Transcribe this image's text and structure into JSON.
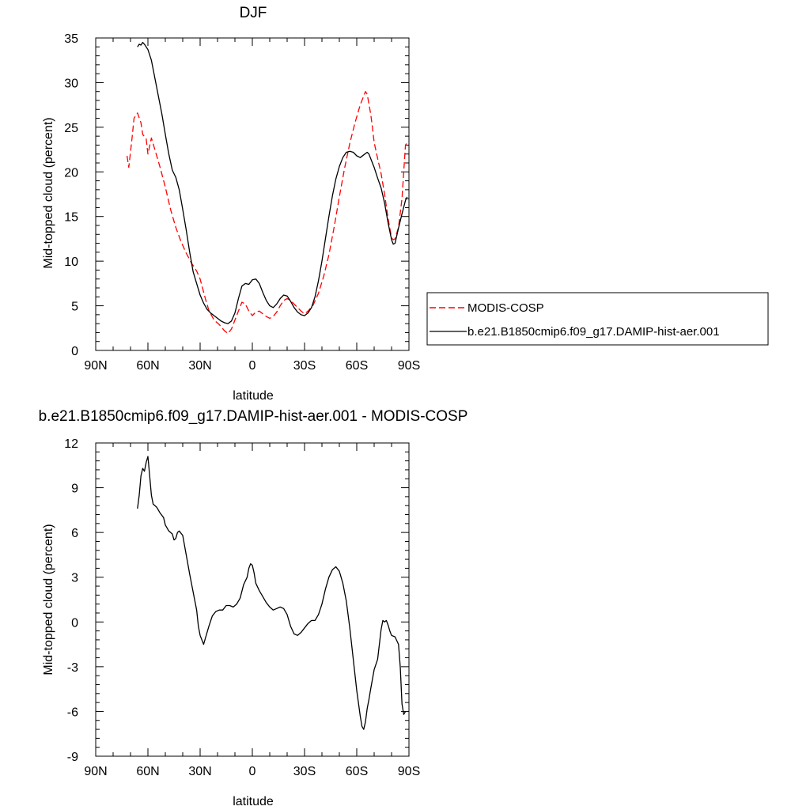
{
  "chart_data": [
    {
      "type": "line",
      "title": "DJF",
      "xlabel": "latitude",
      "ylabel": "Mid-topped cloud (percent)",
      "xlim": [
        -90,
        90
      ],
      "ylim": [
        0,
        35
      ],
      "xticks": [
        -90,
        -60,
        -30,
        0,
        30,
        60,
        90
      ],
      "xtick_labels": [
        "90N",
        "60N",
        "30N",
        "0",
        "30S",
        "60S",
        "90S"
      ],
      "yticks": [
        0,
        5,
        10,
        15,
        20,
        25,
        30,
        35
      ],
      "ytick_labels": [
        "0",
        "5",
        "10",
        "15",
        "20",
        "25",
        "30",
        "35"
      ],
      "legend_position": "right",
      "series": [
        {
          "name": "MODIS-COSP",
          "color": "#ff0000",
          "dash": "dashed",
          "points": [
            [
              -72,
              21.8
            ],
            [
              -71,
              20.5
            ],
            [
              -69,
              24.0
            ],
            [
              -68,
              26.0
            ],
            [
              -66,
              26.6
            ],
            [
              -64,
              25.5
            ],
            [
              -63,
              24.2
            ],
            [
              -61,
              23.7
            ],
            [
              -60,
              22.0
            ],
            [
              -58,
              23.8
            ],
            [
              -56,
              22.5
            ],
            [
              -53,
              20.5
            ],
            [
              -50,
              18.3
            ],
            [
              -47,
              15.8
            ],
            [
              -44,
              13.8
            ],
            [
              -41,
              12.2
            ],
            [
              -38,
              10.9
            ],
            [
              -35,
              9.8
            ],
            [
              -32,
              8.9
            ],
            [
              -30,
              8.0
            ],
            [
              -27,
              5.8
            ],
            [
              -25,
              4.5
            ],
            [
              -22,
              3.4
            ],
            [
              -19,
              2.9
            ],
            [
              -16,
              2.2
            ],
            [
              -14,
              1.9
            ],
            [
              -12,
              2.4
            ],
            [
              -10,
              3.4
            ],
            [
              -8,
              4.4
            ],
            [
              -6,
              5.4
            ],
            [
              -4,
              5.2
            ],
            [
              -2,
              4.4
            ],
            [
              0,
              3.9
            ],
            [
              2,
              4.3
            ],
            [
              4,
              4.4
            ],
            [
              6,
              4.1
            ],
            [
              8,
              3.8
            ],
            [
              10,
              3.6
            ],
            [
              12,
              3.8
            ],
            [
              14,
              4.3
            ],
            [
              16,
              5.0
            ],
            [
              18,
              5.6
            ],
            [
              20,
              5.8
            ],
            [
              22,
              5.6
            ],
            [
              24,
              5.2
            ],
            [
              26,
              4.8
            ],
            [
              28,
              4.4
            ],
            [
              30,
              4.1
            ],
            [
              32,
              4.4
            ],
            [
              35,
              5.1
            ],
            [
              38,
              6.4
            ],
            [
              41,
              8.3
            ],
            [
              44,
              10.7
            ],
            [
              47,
              13.8
            ],
            [
              50,
              17.2
            ],
            [
              53,
              20.4
            ],
            [
              56,
              23.2
            ],
            [
              59,
              25.5
            ],
            [
              62,
              27.5
            ],
            [
              64,
              28.5
            ],
            [
              65,
              29.0
            ],
            [
              66,
              28.7
            ],
            [
              67,
              27.6
            ],
            [
              68,
              26.5
            ],
            [
              69,
              25.0
            ],
            [
              70,
              23.3
            ],
            [
              72,
              21.5
            ],
            [
              74,
              19.8
            ],
            [
              76,
              17.5
            ],
            [
              78,
              14.8
            ],
            [
              80,
              12.6
            ],
            [
              81,
              12.4
            ],
            [
              82,
              12.5
            ],
            [
              84,
              13.8
            ],
            [
              86,
              17.0
            ],
            [
              88,
              23.0
            ],
            [
              89,
              23.3
            ]
          ]
        },
        {
          "name": "b.e21.B1850cmip6.f09_g17.DAMIP-hist-aer.001",
          "color": "#000000",
          "dash": "solid",
          "points": [
            [
              -66,
              34.0
            ],
            [
              -65,
              34.3
            ],
            [
              -64,
              34.2
            ],
            [
              -63,
              34.5
            ],
            [
              -62,
              34.3
            ],
            [
              -60,
              33.7
            ],
            [
              -58,
              32.5
            ],
            [
              -56,
              30.5
            ],
            [
              -54,
              28.5
            ],
            [
              -52,
              26.5
            ],
            [
              -50,
              24.2
            ],
            [
              -48,
              22.0
            ],
            [
              -46,
              20.2
            ],
            [
              -44,
              19.4
            ],
            [
              -42,
              18.0
            ],
            [
              -40,
              15.8
            ],
            [
              -38,
              13.5
            ],
            [
              -36,
              11.0
            ],
            [
              -34,
              8.8
            ],
            [
              -32,
              7.5
            ],
            [
              -30,
              6.2
            ],
            [
              -28,
              5.3
            ],
            [
              -26,
              4.6
            ],
            [
              -24,
              4.2
            ],
            [
              -22,
              3.9
            ],
            [
              -20,
              3.6
            ],
            [
              -18,
              3.3
            ],
            [
              -16,
              3.1
            ],
            [
              -14,
              3.0
            ],
            [
              -12,
              3.3
            ],
            [
              -10,
              4.2
            ],
            [
              -8,
              5.8
            ],
            [
              -6,
              7.2
            ],
            [
              -4,
              7.5
            ],
            [
              -2,
              7.4
            ],
            [
              0,
              7.9
            ],
            [
              2,
              8.0
            ],
            [
              4,
              7.5
            ],
            [
              6,
              6.5
            ],
            [
              8,
              5.6
            ],
            [
              10,
              5.0
            ],
            [
              12,
              4.8
            ],
            [
              14,
              5.2
            ],
            [
              16,
              5.8
            ],
            [
              18,
              6.2
            ],
            [
              20,
              6.1
            ],
            [
              22,
              5.5
            ],
            [
              24,
              4.8
            ],
            [
              26,
              4.3
            ],
            [
              28,
              4.0
            ],
            [
              30,
              3.9
            ],
            [
              32,
              4.2
            ],
            [
              34,
              4.8
            ],
            [
              36,
              6.0
            ],
            [
              38,
              7.8
            ],
            [
              40,
              10.0
            ],
            [
              42,
              12.5
            ],
            [
              44,
              15.0
            ],
            [
              46,
              17.3
            ],
            [
              48,
              19.2
            ],
            [
              50,
              20.6
            ],
            [
              52,
              21.6
            ],
            [
              54,
              22.2
            ],
            [
              56,
              22.3
            ],
            [
              58,
              22.2
            ],
            [
              60,
              21.8
            ],
            [
              62,
              21.6
            ],
            [
              64,
              21.9
            ],
            [
              66,
              22.2
            ],
            [
              67,
              22.0
            ],
            [
              68,
              21.5
            ],
            [
              70,
              20.5
            ],
            [
              72,
              19.3
            ],
            [
              74,
              18.2
            ],
            [
              76,
              16.5
            ],
            [
              78,
              14.3
            ],
            [
              80,
              12.4
            ],
            [
              81,
              11.9
            ],
            [
              82,
              12.0
            ],
            [
              84,
              13.7
            ],
            [
              86,
              15.3
            ],
            [
              88,
              16.8
            ],
            [
              89,
              17.2
            ]
          ]
        }
      ]
    },
    {
      "type": "line",
      "title": "b.e21.B1850cmip6.f09_g17.DAMIP-hist-aer.001 - MODIS-COSP",
      "xlabel": "latitude",
      "ylabel": "Mid-topped cloud (percent)",
      "xlim": [
        -90,
        90
      ],
      "ylim": [
        -9,
        12
      ],
      "xticks": [
        -90,
        -60,
        -30,
        0,
        30,
        60,
        90
      ],
      "xtick_labels": [
        "90N",
        "60N",
        "30N",
        "0",
        "30S",
        "60S",
        "90S"
      ],
      "yticks": [
        -9,
        -6,
        -3,
        0,
        3,
        6,
        9,
        12
      ],
      "ytick_labels": [
        "-9",
        "-6",
        "-3",
        "0",
        "3",
        "6",
        "9",
        "12"
      ],
      "series": [
        {
          "color": "#000000",
          "dash": "solid",
          "points": [
            [
              -66,
              7.6
            ],
            [
              -65,
              8.5
            ],
            [
              -64,
              9.8
            ],
            [
              -63,
              10.3
            ],
            [
              -62,
              10.1
            ],
            [
              -61,
              10.7
            ],
            [
              -60,
              11.1
            ],
            [
              -59,
              9.8
            ],
            [
              -58,
              8.5
            ],
            [
              -57,
              7.9
            ],
            [
              -55,
              7.7
            ],
            [
              -53,
              7.3
            ],
            [
              -51,
              7.0
            ],
            [
              -50,
              6.5
            ],
            [
              -48,
              6.1
            ],
            [
              -46,
              5.9
            ],
            [
              -45,
              5.5
            ],
            [
              -44,
              5.6
            ],
            [
              -43,
              6.0
            ],
            [
              -42,
              6.1
            ],
            [
              -40,
              5.8
            ],
            [
              -38,
              4.5
            ],
            [
              -36,
              3.2
            ],
            [
              -34,
              2.0
            ],
            [
              -32,
              0.8
            ],
            [
              -31,
              -0.3
            ],
            [
              -30,
              -0.9
            ],
            [
              -28,
              -1.5
            ],
            [
              -27,
              -1.1
            ],
            [
              -25,
              -0.3
            ],
            [
              -23,
              0.4
            ],
            [
              -21,
              0.7
            ],
            [
              -19,
              0.8
            ],
            [
              -17,
              0.8
            ],
            [
              -15,
              1.1
            ],
            [
              -13,
              1.1
            ],
            [
              -11,
              1.0
            ],
            [
              -9,
              1.2
            ],
            [
              -7,
              1.6
            ],
            [
              -5,
              2.5
            ],
            [
              -3,
              3.0
            ],
            [
              -2,
              3.6
            ],
            [
              -1,
              3.9
            ],
            [
              0,
              3.8
            ],
            [
              1,
              3.3
            ],
            [
              2,
              2.6
            ],
            [
              4,
              2.1
            ],
            [
              6,
              1.7
            ],
            [
              8,
              1.3
            ],
            [
              10,
              1.0
            ],
            [
              12,
              0.8
            ],
            [
              14,
              0.9
            ],
            [
              16,
              1.0
            ],
            [
              18,
              0.9
            ],
            [
              20,
              0.5
            ],
            [
              22,
              -0.3
            ],
            [
              24,
              -0.8
            ],
            [
              26,
              -0.9
            ],
            [
              28,
              -0.7
            ],
            [
              30,
              -0.4
            ],
            [
              32,
              -0.1
            ],
            [
              34,
              0.1
            ],
            [
              36,
              0.1
            ],
            [
              38,
              0.5
            ],
            [
              40,
              1.2
            ],
            [
              42,
              2.2
            ],
            [
              44,
              3.0
            ],
            [
              46,
              3.5
            ],
            [
              48,
              3.7
            ],
            [
              50,
              3.4
            ],
            [
              52,
              2.6
            ],
            [
              54,
              1.4
            ],
            [
              56,
              -0.4
            ],
            [
              58,
              -2.5
            ],
            [
              60,
              -4.6
            ],
            [
              62,
              -6.3
            ],
            [
              63,
              -7.0
            ],
            [
              64,
              -7.2
            ],
            [
              65,
              -6.7
            ],
            [
              66,
              -5.8
            ],
            [
              67,
              -5.2
            ],
            [
              68,
              -4.5
            ],
            [
              70,
              -3.2
            ],
            [
              72,
              -2.5
            ],
            [
              73,
              -1.5
            ],
            [
              74,
              -0.5
            ],
            [
              75,
              0.1
            ],
            [
              76,
              0.0
            ],
            [
              77,
              0.1
            ],
            [
              78,
              -0.2
            ],
            [
              79,
              -0.6
            ],
            [
              80,
              -0.9
            ],
            [
              82,
              -1.0
            ],
            [
              84,
              -1.5
            ],
            [
              85,
              -3.0
            ],
            [
              86,
              -5.5
            ],
            [
              87,
              -6.2
            ],
            [
              88,
              -6.0
            ]
          ]
        }
      ]
    }
  ]
}
